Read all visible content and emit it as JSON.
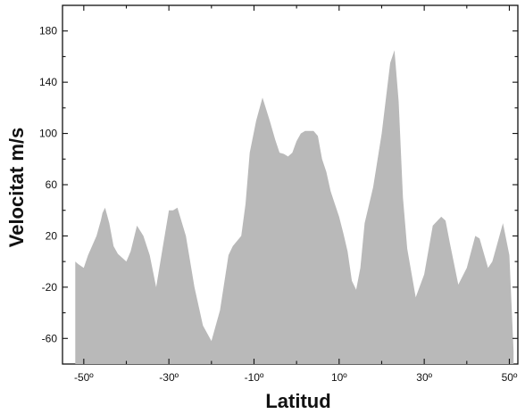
{
  "chart_data": {
    "type": "area",
    "title": "",
    "xlabel": "Latitud",
    "ylabel": "Velocitat m/s",
    "xlim": [
      -55,
      52
    ],
    "ylim": [
      -80,
      200
    ],
    "xticks": [
      -50,
      -30,
      -10,
      10,
      30,
      50
    ],
    "xtick_labels": [
      "-50º",
      "-30º",
      "-10º",
      "10º",
      "30º",
      "50º"
    ],
    "yticks": [
      -60,
      -20,
      20,
      60,
      100,
      140,
      180
    ],
    "ytick_labels": [
      "-60",
      "-20",
      "20",
      "60",
      "100",
      "140",
      "180"
    ],
    "grid": false,
    "fill_color": "#b9b9b9",
    "baseline": -80,
    "x": [
      -52,
      -51.3,
      -50,
      -49,
      -47,
      -46,
      -45.6,
      -45,
      -44,
      -43,
      -42,
      -40,
      -39,
      -37.5,
      -36,
      -34.5,
      -33,
      -31.5,
      -30,
      -29,
      -28,
      -26,
      -24,
      -22,
      -20,
      -18,
      -16,
      -15,
      -13,
      -12,
      -11,
      -9.5,
      -8,
      -6.3,
      -5,
      -4,
      -3,
      -2,
      -1,
      0,
      1,
      2,
      4,
      5,
      6,
      7,
      8,
      9,
      10,
      11,
      12,
      13,
      14,
      15,
      16,
      18,
      20,
      22,
      23,
      24,
      25,
      26,
      28,
      30,
      32,
      34,
      35,
      36,
      38,
      40,
      42,
      43,
      45,
      46,
      47,
      48.5,
      50,
      51
    ],
    "y": [
      0,
      -2,
      -5,
      5,
      20,
      32,
      38,
      42,
      30,
      12,
      6,
      0,
      8,
      28,
      20,
      5,
      -20,
      10,
      40,
      40,
      42,
      20,
      -20,
      -50,
      -62,
      -38,
      5,
      12,
      20,
      45,
      85,
      110,
      128,
      110,
      95,
      85,
      84,
      82,
      85,
      94,
      100,
      102,
      102,
      98,
      80,
      70,
      55,
      45,
      35,
      22,
      8,
      -15,
      -22,
      -5,
      30,
      58,
      100,
      155,
      165,
      125,
      50,
      10,
      -28,
      -10,
      28,
      35,
      32,
      15,
      -18,
      -5,
      20,
      18,
      -5,
      0,
      12,
      30,
      5,
      -70
    ]
  }
}
